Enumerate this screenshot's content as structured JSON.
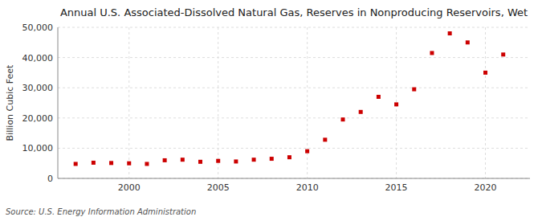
{
  "chart_data": {
    "type": "scatter",
    "title": "Annual U.S. Associated-Dissolved Natural Gas, Reserves in Nonproducing Reservoirs, Wet",
    "ylabel": "Billion Cubic Feet",
    "source": "Source: U.S. Energy Information Administration",
    "x": [
      1997,
      1998,
      1999,
      2000,
      2001,
      2002,
      2003,
      2004,
      2005,
      2006,
      2007,
      2008,
      2009,
      2010,
      2011,
      2012,
      2013,
      2014,
      2015,
      2016,
      2017,
      2018,
      2019,
      2020,
      2021
    ],
    "values": [
      4800,
      5200,
      5100,
      5000,
      4800,
      6000,
      6200,
      5500,
      5800,
      5600,
      6200,
      6500,
      7000,
      9000,
      12800,
      19500,
      22000,
      27000,
      24500,
      29500,
      41500,
      48000,
      45000,
      35000,
      41000
    ],
    "color": "#cc0000",
    "marker": "square",
    "xlim": [
      1996,
      2022.5
    ],
    "xticks": [
      2000,
      2005,
      2010,
      2015,
      2020
    ],
    "ylim": [
      0,
      50000
    ],
    "yticks": [
      0,
      {
        "value": 10000,
        "label": "10,000"
      },
      {
        "value": 20000,
        "label": "20,000"
      },
      {
        "value": 30000,
        "label": "30,000"
      },
      {
        "value": 40000,
        "label": "40,000"
      },
      {
        "value": 50000,
        "label": "50,000"
      }
    ],
    "grid": true
  }
}
